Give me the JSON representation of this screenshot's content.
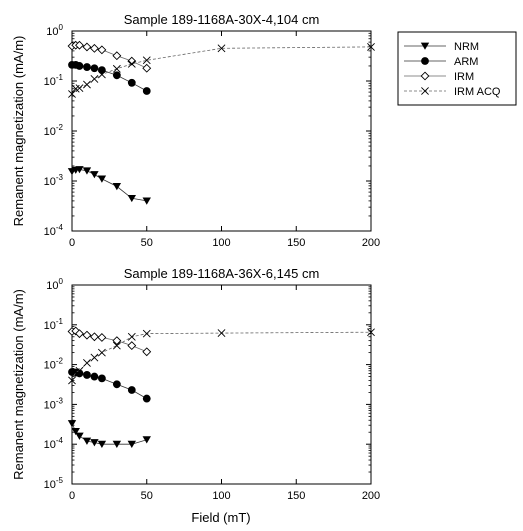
{
  "figure": {
    "xlabel": "Field (mT)",
    "legend": {
      "position": "top-right",
      "entries": [
        "NRM",
        "ARM",
        "IRM",
        "IRM ACQ"
      ]
    }
  },
  "chart_data": [
    {
      "type": "line",
      "title": "Sample 189-1168A-30X-4,104 cm",
      "xlabel": "",
      "ylabel": "Remanent magnetization (mA/m)",
      "xlim": [
        0,
        200
      ],
      "ylim": [
        0.0001,
        1
      ],
      "yscale": "log",
      "xticks": [
        "0",
        "50",
        "100",
        "150",
        "200"
      ],
      "yticks": [
        {
          "base": "10",
          "exp": "-4"
        },
        {
          "base": "10",
          "exp": "-3"
        },
        {
          "base": "10",
          "exp": "-2"
        },
        {
          "base": "10",
          "exp": "-1"
        },
        {
          "base": "10",
          "exp": "0"
        }
      ],
      "series": [
        {
          "name": "NRM",
          "marker": "triangle-down",
          "x": [
            0,
            2.5,
            5,
            10,
            15,
            20,
            30,
            40,
            50
          ],
          "y": [
            0.00155,
            0.00165,
            0.0017,
            0.0016,
            0.00135,
            0.0011,
            0.00078,
            0.00045,
            0.0004
          ]
        },
        {
          "name": "ARM",
          "marker": "circle",
          "x": [
            0,
            2.5,
            5,
            10,
            15,
            20,
            30,
            40,
            50
          ],
          "y": [
            0.21,
            0.21,
            0.2,
            0.19,
            0.18,
            0.165,
            0.13,
            0.092,
            0.063
          ]
        },
        {
          "name": "IRM",
          "marker": "diamond",
          "x": [
            0,
            2.5,
            5,
            10,
            15,
            20,
            30,
            40,
            50
          ],
          "y": [
            0.5,
            0.52,
            0.52,
            0.48,
            0.45,
            0.42,
            0.32,
            0.25,
            0.18
          ]
        },
        {
          "name": "IRM ACQ",
          "marker": "x",
          "x": [
            0,
            2.5,
            5,
            10,
            15,
            20,
            30,
            40,
            50,
            100,
            200
          ],
          "y": [
            0.055,
            0.07,
            0.072,
            0.085,
            0.11,
            0.135,
            0.175,
            0.22,
            0.26,
            0.45,
            0.48
          ]
        }
      ]
    },
    {
      "type": "line",
      "title": "Sample 189-1168A-36X-6,145 cm",
      "xlabel": "Field (mT)",
      "ylabel": "Remanent magnetization (mA/m)",
      "xlim": [
        0,
        200
      ],
      "ylim": [
        1e-05,
        1
      ],
      "yscale": "log",
      "xticks": [
        "0",
        "50",
        "100",
        "150",
        "200"
      ],
      "yticks": [
        {
          "base": "10",
          "exp": "-5"
        },
        {
          "base": "10",
          "exp": "-4"
        },
        {
          "base": "10",
          "exp": "-3"
        },
        {
          "base": "10",
          "exp": "-2"
        },
        {
          "base": "10",
          "exp": "-1"
        },
        {
          "base": "10",
          "exp": "0"
        }
      ],
      "series": [
        {
          "name": "NRM",
          "marker": "triangle-down",
          "x": [
            0,
            2.5,
            5,
            10,
            15,
            20,
            30,
            40,
            50
          ],
          "y": [
            0.00033,
            0.00021,
            0.00016,
            0.00012,
            0.00011,
            0.0001,
            0.0001,
            0.0001,
            0.00013
          ]
        },
        {
          "name": "ARM",
          "marker": "circle",
          "x": [
            0,
            2.5,
            5,
            10,
            15,
            20,
            30,
            40,
            50
          ],
          "y": [
            0.0065,
            0.0063,
            0.006,
            0.0055,
            0.005,
            0.0045,
            0.0032,
            0.0023,
            0.0014
          ]
        },
        {
          "name": "IRM",
          "marker": "diamond",
          "x": [
            0,
            2.5,
            5,
            10,
            15,
            20,
            30,
            40,
            50
          ],
          "y": [
            0.068,
            0.07,
            0.06,
            0.055,
            0.05,
            0.048,
            0.04,
            0.03,
            0.021
          ]
        },
        {
          "name": "IRM ACQ",
          "marker": "x",
          "x": [
            0,
            2.5,
            5,
            10,
            15,
            20,
            30,
            40,
            50,
            100,
            200
          ],
          "y": [
            0.004,
            0.0065,
            0.007,
            0.011,
            0.015,
            0.02,
            0.03,
            0.05,
            0.06,
            0.062,
            0.065
          ]
        }
      ]
    }
  ]
}
